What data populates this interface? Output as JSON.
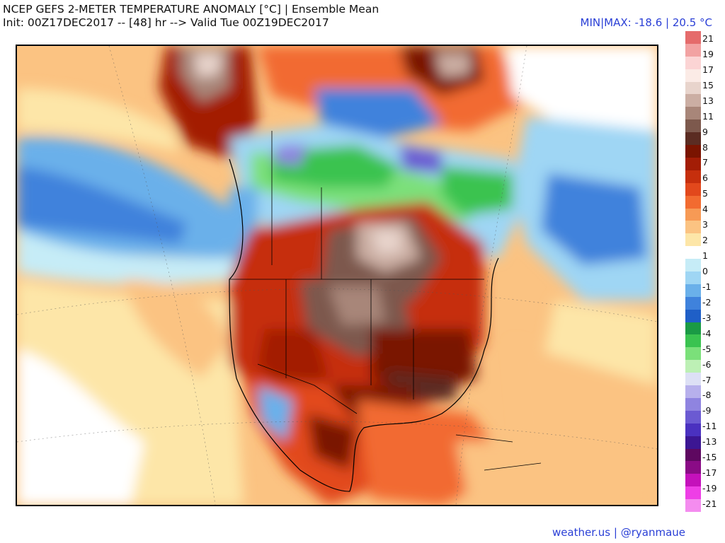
{
  "header": {
    "title_line1": "NCEP GEFS 2-METER TEMPERATURE ANOMALY [°C] | Ensemble Mean",
    "title_line2": "Init: 00Z17DEC2017 -- [48] hr --> Valid Tue 00Z19DEC2017",
    "minmax": "MIN|MAX: -18.6 | 20.5 °C"
  },
  "map": {
    "product": "2-meter temperature anomaly",
    "region": "North America",
    "units": "°C"
  },
  "colorbar": {
    "labels": [
      "21",
      "19",
      "17",
      "15",
      "13",
      "11",
      "9",
      "8",
      "7",
      "6",
      "5",
      "4",
      "3",
      "2",
      "1",
      "0",
      "-1",
      "-2",
      "-3",
      "-4",
      "-5",
      "-6",
      "-7",
      "-8",
      "-9",
      "-11",
      "-13",
      "-15",
      "-17",
      "-19",
      "-21"
    ],
    "colors": [
      "#e56b6b",
      "#f2a2a2",
      "#fbd4d4",
      "#fbebe6",
      "#e8d4cc",
      "#cbaea3",
      "#a88679",
      "#7d594d",
      "#5b2c22",
      "#7a1400",
      "#a31d06",
      "#c62f0d",
      "#e2481c",
      "#f26b30",
      "#f79a55",
      "#fbc382",
      "#fde6a8",
      "#ffffff",
      "#c6ecf7",
      "#9fd6f4",
      "#6ab0ea",
      "#3f82dc",
      "#1f5fc7",
      "#1a9a45",
      "#3ac350",
      "#7be07a",
      "#bdf0b5",
      "#dde0f5",
      "#b7b0ec",
      "#8f84e0",
      "#6b5ad2",
      "#4a31c0",
      "#3c1693",
      "#5e0860",
      "#8a0b86",
      "#c411bb",
      "#ee3ee6",
      "#f48cef"
    ]
  },
  "credit": "weather.us | @ryanmaue"
}
